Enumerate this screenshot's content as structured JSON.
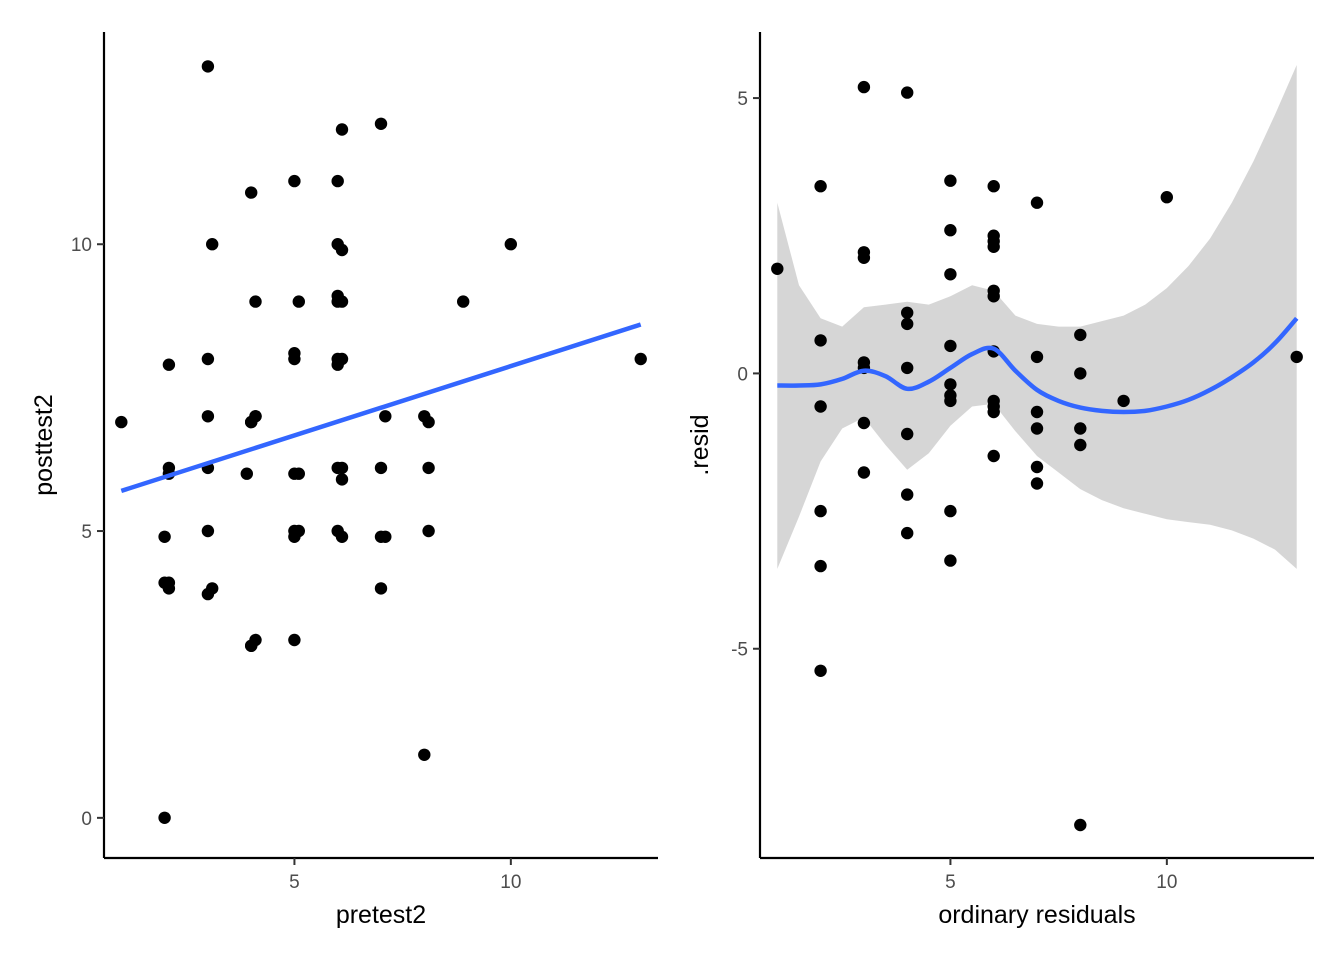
{
  "chart_data": [
    {
      "type": "scatter",
      "xlabel": "pretest2",
      "ylabel": "posttest2",
      "xlim": [
        0.6,
        13.4
      ],
      "ylim": [
        -0.7,
        13.7
      ],
      "x_ticks": [
        5,
        10
      ],
      "y_ticks": [
        0,
        5,
        10
      ],
      "x_tick_labels": [
        "5",
        "10"
      ],
      "y_tick_labels": [
        "0",
        "5",
        "10"
      ],
      "grid": false,
      "point_color": "#000000",
      "line_color": "#3366ff",
      "fit_line": {
        "x": [
          1,
          13
        ],
        "y": [
          5.7,
          8.6
        ]
      },
      "points": [
        [
          1,
          6.9
        ],
        [
          2,
          0
        ],
        [
          2,
          4.9
        ],
        [
          2,
          4.1
        ],
        [
          2.1,
          4.1
        ],
        [
          2.1,
          4
        ],
        [
          2.1,
          6.1
        ],
        [
          2.1,
          6
        ],
        [
          2.1,
          7.9
        ],
        [
          3,
          13.1
        ],
        [
          3,
          8
        ],
        [
          3,
          7
        ],
        [
          3,
          6.1
        ],
        [
          3,
          5
        ],
        [
          3,
          3.9
        ],
        [
          3.1,
          4
        ],
        [
          3.1,
          10
        ],
        [
          4,
          6.9
        ],
        [
          4,
          6.9
        ],
        [
          4.1,
          7
        ],
        [
          4.1,
          7
        ],
        [
          3.9,
          6
        ],
        [
          4,
          3
        ],
        [
          4,
          3
        ],
        [
          4.1,
          3.1
        ],
        [
          4.1,
          9
        ],
        [
          4,
          10.9
        ],
        [
          5,
          11.1
        ],
        [
          5,
          8.1
        ],
        [
          5,
          8
        ],
        [
          5,
          6
        ],
        [
          5.1,
          6
        ],
        [
          5,
          5
        ],
        [
          5.1,
          5
        ],
        [
          5,
          4.9
        ],
        [
          5,
          3.1
        ],
        [
          5.1,
          9
        ],
        [
          6,
          11.1
        ],
        [
          6,
          10
        ],
        [
          6.1,
          9.9
        ],
        [
          6,
          9.1
        ],
        [
          6.1,
          9
        ],
        [
          6,
          9
        ],
        [
          6,
          8
        ],
        [
          6.1,
          8
        ],
        [
          6,
          7.9
        ],
        [
          6,
          6.1
        ],
        [
          6.1,
          6.1
        ],
        [
          6.1,
          5.9
        ],
        [
          6,
          5
        ],
        [
          6.1,
          4.9
        ],
        [
          6.1,
          12
        ],
        [
          7,
          12.1
        ],
        [
          7.1,
          7
        ],
        [
          7,
          6.1
        ],
        [
          7,
          4.9
        ],
        [
          7.1,
          4.9
        ],
        [
          7,
          4
        ],
        [
          8,
          7
        ],
        [
          8.1,
          6.9
        ],
        [
          8.1,
          6.1
        ],
        [
          8.1,
          5
        ],
        [
          8,
          1.1
        ],
        [
          8.9,
          9
        ],
        [
          10,
          10
        ],
        [
          13,
          8
        ]
      ]
    },
    {
      "type": "scatter",
      "xlabel": "ordinary residuals",
      "ylabel": ".resid",
      "xlim": [
        0.6,
        13.4
      ],
      "ylim": [
        -8.8,
        6.2
      ],
      "x_ticks": [
        5,
        10
      ],
      "y_ticks": [
        -5,
        0,
        5
      ],
      "x_tick_labels": [
        "5",
        "10"
      ],
      "y_tick_labels": [
        "-5",
        "0",
        "5"
      ],
      "grid": false,
      "point_color": "#000000",
      "line_color": "#3366ff",
      "band_color": "#cccccc",
      "smooth": {
        "x": [
          1,
          1.5,
          2,
          2.5,
          3,
          3.5,
          4,
          4.5,
          5,
          5.5,
          6,
          6.5,
          7,
          7.5,
          8,
          8.5,
          9,
          9.5,
          10,
          10.5,
          11,
          11.5,
          12,
          12.5,
          13
        ],
        "y": [
          -0.22,
          -0.22,
          -0.2,
          -0.1,
          0.05,
          -0.05,
          -0.28,
          -0.15,
          0.1,
          0.35,
          0.45,
          0.05,
          -0.3,
          -0.5,
          -0.62,
          -0.68,
          -0.7,
          -0.68,
          -0.6,
          -0.48,
          -0.3,
          -0.07,
          0.2,
          0.55,
          1.0
        ],
        "lower": [
          -3.55,
          -2.6,
          -1.6,
          -1.0,
          -0.8,
          -1.3,
          -1.75,
          -1.45,
          -0.95,
          -0.6,
          -0.55,
          -1.05,
          -1.5,
          -1.8,
          -2.1,
          -2.3,
          -2.45,
          -2.55,
          -2.65,
          -2.7,
          -2.75,
          -2.85,
          -3.0,
          -3.2,
          -3.55
        ],
        "upper": [
          3.1,
          1.6,
          1.0,
          0.85,
          1.2,
          1.25,
          1.3,
          1.25,
          1.4,
          1.6,
          1.5,
          1.05,
          0.9,
          0.85,
          0.85,
          0.95,
          1.05,
          1.25,
          1.55,
          1.95,
          2.45,
          3.1,
          3.85,
          4.7,
          5.6
        ]
      },
      "points": [
        [
          1,
          1.9
        ],
        [
          2,
          3.4
        ],
        [
          2,
          0.6
        ],
        [
          2,
          -0.6
        ],
        [
          2,
          -2.5
        ],
        [
          2,
          -3.5
        ],
        [
          2,
          -5.4
        ],
        [
          3,
          5.2
        ],
        [
          3,
          2.2
        ],
        [
          3,
          2.1
        ],
        [
          3,
          0.2
        ],
        [
          3,
          0.1
        ],
        [
          3,
          -0.9
        ],
        [
          3,
          -1.8
        ],
        [
          4,
          5.1
        ],
        [
          4,
          1.1
        ],
        [
          4,
          0.9
        ],
        [
          4,
          0.1
        ],
        [
          4,
          -1.1
        ],
        [
          4,
          -2.2
        ],
        [
          4,
          -2.9
        ],
        [
          5,
          3.5
        ],
        [
          5,
          2.6
        ],
        [
          5,
          1.8
        ],
        [
          5,
          0.5
        ],
        [
          5,
          -0.2
        ],
        [
          5,
          -0.4
        ],
        [
          5,
          -0.5
        ],
        [
          5,
          -2.5
        ],
        [
          5,
          -3.4
        ],
        [
          6,
          3.4
        ],
        [
          6,
          2.5
        ],
        [
          6,
          2.4
        ],
        [
          6,
          2.3
        ],
        [
          6,
          1.5
        ],
        [
          6,
          1.4
        ],
        [
          6,
          0.4
        ],
        [
          6,
          -0.5
        ],
        [
          6,
          -0.6
        ],
        [
          6,
          -0.7
        ],
        [
          6,
          -1.5
        ],
        [
          7,
          3.1
        ],
        [
          7,
          0.3
        ],
        [
          7,
          -0.7
        ],
        [
          7,
          -1
        ],
        [
          7,
          -1.7
        ],
        [
          7,
          -2
        ],
        [
          8,
          0.7
        ],
        [
          8,
          0
        ],
        [
          8,
          -1
        ],
        [
          8,
          -1.3
        ],
        [
          8,
          -8.2
        ],
        [
          9,
          -0.5
        ],
        [
          10,
          3.2
        ],
        [
          13,
          0.3
        ]
      ]
    }
  ]
}
